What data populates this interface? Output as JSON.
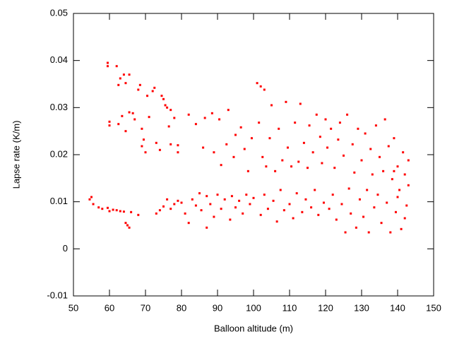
{
  "chart_data": {
    "type": "scatter",
    "x_label": "Balloon altitude (m)",
    "y_label": "Lapse rate (K/m)",
    "xlim": [
      50,
      150
    ],
    "xticks": [
      50,
      60,
      70,
      80,
      90,
      100,
      110,
      120,
      130,
      140,
      150
    ],
    "ylim": [
      -0.01,
      0.05
    ],
    "yticks": [
      -0.01,
      0,
      0.01,
      0.02,
      0.03,
      0.04,
      0.05
    ],
    "x": [
      54.5,
      55,
      55.5,
      57,
      58,
      59.5,
      60,
      61,
      62,
      63,
      64,
      64.5,
      65,
      65.5,
      66,
      68,
      59.5,
      59.5,
      62,
      62.5,
      63,
      64,
      64.5,
      65.5,
      60,
      60,
      62.5,
      63.5,
      64.5,
      65.5,
      66.5,
      67,
      68,
      68.5,
      69,
      69.5,
      69,
      70,
      70.5,
      71,
      72,
      72.5,
      73,
      74,
      74.5,
      75,
      75.5,
      76,
      76.5,
      77,
      77,
      78,
      79,
      79,
      73,
      74,
      75,
      76,
      77,
      78,
      79,
      80,
      81,
      82,
      82,
      83,
      84,
      84,
      85,
      85.5,
      86,
      86.5,
      87,
      87,
      88,
      88.5,
      89,
      89,
      90,
      90.5,
      91,
      91,
      92,
      92.5,
      93,
      93.5,
      94,
      94.5,
      95,
      95,
      96,
      96.5,
      97,
      97.5,
      98,
      98.5,
      99,
      99.5,
      100,
      101,
      102,
      103,
      101.5,
      102,
      102.5,
      103,
      103.5,
      104,
      104.5,
      105,
      105.5,
      106,
      106.5,
      107,
      107.5,
      108,
      108.5,
      109,
      109.5,
      110,
      110.5,
      111,
      111.5,
      112,
      112.5,
      113,
      113.5,
      114,
      114.5,
      115,
      115.5,
      116,
      116.5,
      117,
      117.5,
      118,
      118.5,
      119,
      119.5,
      120,
      120.5,
      121,
      121.5,
      122,
      122.5,
      123,
      123.5,
      124,
      124.5,
      125,
      125.5,
      126,
      126.5,
      127,
      127.5,
      128,
      128.5,
      129,
      129.5,
      130,
      130.5,
      131,
      131.5,
      132,
      132.5,
      133,
      133.5,
      134,
      134.5,
      135,
      135.5,
      136,
      136.5,
      137,
      137.5,
      138,
      138.5,
      139,
      139.5,
      140,
      140.5,
      141,
      141.5,
      142,
      142.5,
      143,
      143,
      142,
      140,
      139
    ],
    "series": [
      {
        "color": "#ff0000",
        "values": [
          0.0105,
          0.011,
          0.0095,
          0.0088,
          0.0085,
          0.0087,
          0.008,
          0.0083,
          0.0082,
          0.008,
          0.0079,
          0.0055,
          0.005,
          0.0045,
          0.0078,
          0.0072,
          0.0395,
          0.0388,
          0.0388,
          0.0348,
          0.0362,
          0.037,
          0.0352,
          0.037,
          0.027,
          0.0262,
          0.0265,
          0.0282,
          0.025,
          0.029,
          0.0288,
          0.0275,
          0.0338,
          0.0348,
          0.0255,
          0.0232,
          0.0218,
          0.0205,
          0.0325,
          0.028,
          0.0335,
          0.0342,
          0.0225,
          0.021,
          0.0325,
          0.0318,
          0.0305,
          0.03,
          0.026,
          0.0295,
          0.0222,
          0.0278,
          0.0205,
          0.022,
          0.0075,
          0.0082,
          0.009,
          0.0105,
          0.0085,
          0.0095,
          0.0102,
          0.0098,
          0.0075,
          0.0055,
          0.0285,
          0.0105,
          0.0265,
          0.0092,
          0.0118,
          0.0082,
          0.0215,
          0.0278,
          0.0112,
          0.0045,
          0.0095,
          0.0288,
          0.0068,
          0.0205,
          0.0115,
          0.0275,
          0.0085,
          0.0178,
          0.0105,
          0.0222,
          0.0295,
          0.0062,
          0.0112,
          0.0195,
          0.0088,
          0.0242,
          0.0102,
          0.0258,
          0.0075,
          0.0212,
          0.0115,
          0.0165,
          0.0095,
          0.0235,
          0.0108,
          0.0352,
          0.0345,
          0.0338,
          0.0268,
          0.0072,
          0.0195,
          0.0115,
          0.0175,
          0.0085,
          0.0235,
          0.0305,
          0.0102,
          0.0165,
          0.0058,
          0.0255,
          0.0125,
          0.0188,
          0.0082,
          0.0312,
          0.0215,
          0.0095,
          0.0175,
          0.0065,
          0.0268,
          0.0118,
          0.0185,
          0.0308,
          0.0078,
          0.0225,
          0.0105,
          0.0172,
          0.0262,
          0.0088,
          0.0205,
          0.0125,
          0.0285,
          0.0072,
          0.0238,
          0.0182,
          0.0098,
          0.0275,
          0.0215,
          0.0085,
          0.0255,
          0.0115,
          0.0172,
          0.0062,
          0.0232,
          0.0268,
          0.0095,
          0.0198,
          0.0035,
          0.0285,
          0.0128,
          0.0075,
          0.0222,
          0.0162,
          0.0045,
          0.0255,
          0.0105,
          0.0188,
          0.0068,
          0.0245,
          0.0125,
          0.0035,
          0.0212,
          0.0158,
          0.0088,
          0.0262,
          0.0115,
          0.0195,
          0.0055,
          0.0165,
          0.0275,
          0.0098,
          0.0218,
          0.0035,
          0.0148,
          0.0235,
          0.0078,
          0.0175,
          0.0125,
          0.0042,
          0.0205,
          0.0158,
          0.0092,
          0.0135,
          0.0188,
          0.0065,
          0.011,
          0.0165
        ]
      }
    ]
  }
}
